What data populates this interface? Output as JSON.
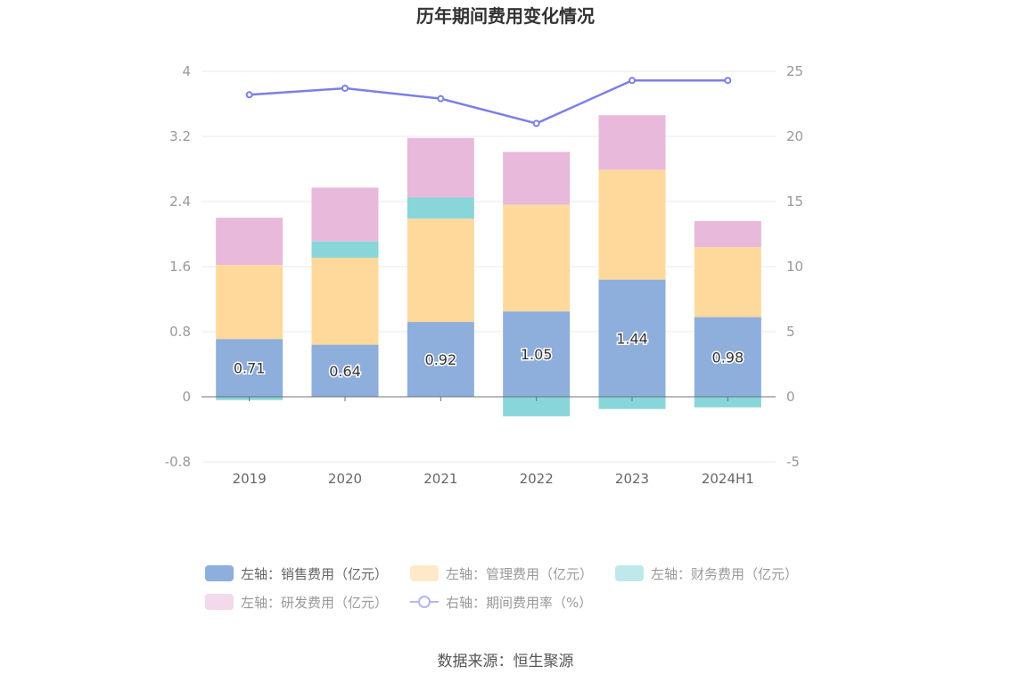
{
  "chart_data": {
    "type": "bar",
    "title": "历年期间费用变化情况",
    "categories": [
      "2019",
      "2020",
      "2021",
      "2022",
      "2023",
      "2024H1"
    ],
    "y_left": {
      "min": -0.8,
      "max": 4,
      "ticks": [
        "4",
        "3.2",
        "2.4",
        "1.6",
        "0.8",
        "0",
        "-0.8"
      ]
    },
    "y_right": {
      "min": -5,
      "max": 25,
      "ticks": [
        "25",
        "20",
        "15",
        "10",
        "5",
        "0",
        "-5"
      ]
    },
    "series": [
      {
        "name": "左轴：销售费用（亿元）",
        "axis": "left",
        "stack": "fee",
        "color": "#8eaedc",
        "values": [
          0.71,
          0.64,
          0.92,
          1.05,
          1.44,
          0.98
        ],
        "labels": [
          "0.71",
          "0.64",
          "0.92",
          "1.05",
          "1.44",
          "0.98"
        ]
      },
      {
        "name": "左轴：管理费用（亿元）",
        "axis": "left",
        "stack": "fee",
        "color": "#fed99b",
        "values": [
          0.91,
          1.07,
          1.27,
          1.31,
          1.35,
          0.86
        ]
      },
      {
        "name": "左轴：财务费用（亿元）",
        "axis": "left",
        "stack": "fee",
        "color": "#88d6d9",
        "values": [
          -0.04,
          0.2,
          0.26,
          -0.24,
          -0.15,
          -0.13
        ]
      },
      {
        "name": "左轴：研发费用（亿元）",
        "axis": "left",
        "stack": "fee",
        "color": "#e8b9da",
        "values": [
          0.58,
          0.66,
          0.73,
          0.65,
          0.67,
          0.32
        ]
      },
      {
        "name": "右轴：期间费用率（%）",
        "axis": "right",
        "type": "line",
        "color": "#7b7fe6",
        "values": [
          23.2,
          23.7,
          22.9,
          21.0,
          24.3,
          24.3
        ]
      }
    ],
    "grid": true,
    "legend_position": "bottom"
  },
  "source_text": "数据来源：恒生聚源"
}
